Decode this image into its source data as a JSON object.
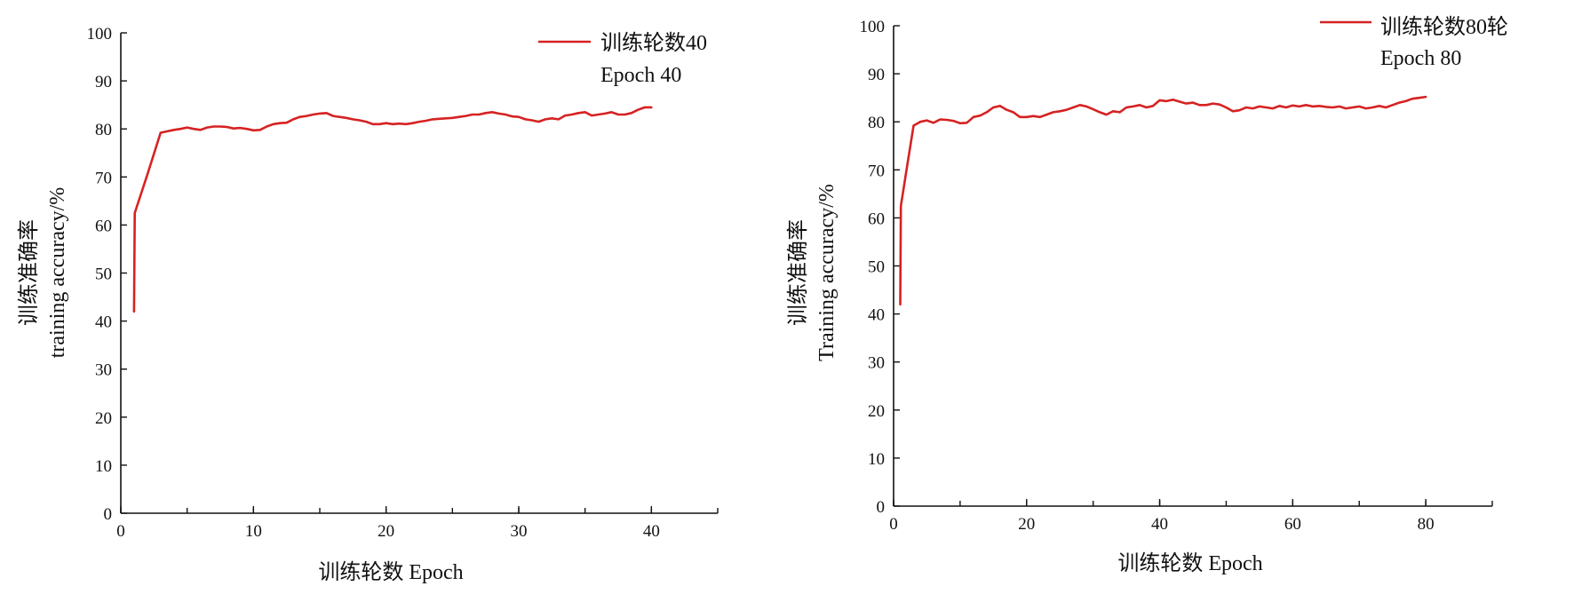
{
  "colors": {
    "series": "#d62222",
    "axis": "#111111"
  },
  "chart_data": [
    {
      "type": "line",
      "xlabel": "训练轮数  Epoch",
      "ylabel_cn": "训练准确率",
      "ylabel_en": "training accuracy/%",
      "xlim": [
        0,
        45
      ],
      "ylim": [
        0,
        100
      ],
      "xticks_major": [
        0,
        10,
        20,
        30,
        40
      ],
      "xticks_minor_step": 5,
      "yticks": [
        0,
        10,
        20,
        30,
        40,
        50,
        60,
        70,
        80,
        90,
        100
      ],
      "grid": false,
      "legend": {
        "position": "top-right",
        "line1": "训练轮数40",
        "line2": "Epoch 40"
      },
      "series": [
        {
          "name": "训练轮数40",
          "x": [
            1,
            1.05,
            2,
            3,
            3.5,
            4,
            4.5,
            5,
            5.5,
            6,
            6.5,
            7,
            7.5,
            8,
            8.5,
            9,
            9.5,
            10,
            10.5,
            11,
            11.5,
            12,
            12.5,
            13,
            13.5,
            14,
            14.5,
            15,
            15.5,
            16,
            16.5,
            17,
            17.5,
            18,
            18.5,
            19,
            19.5,
            20,
            20.5,
            21,
            21.5,
            22,
            22.5,
            23,
            23.5,
            24,
            24.5,
            25,
            25.5,
            26,
            26.5,
            27,
            27.5,
            28,
            28.5,
            29,
            29.5,
            30,
            30.5,
            31,
            31.5,
            32,
            32.5,
            33,
            33.5,
            34,
            34.5,
            35,
            35.5,
            36,
            36.5,
            37,
            37.5,
            38,
            38.5,
            39,
            39.5,
            40
          ],
          "values": [
            42,
            62.5,
            70.5,
            79.2,
            79.5,
            79.8,
            80.0,
            80.3,
            80.0,
            79.8,
            80.3,
            80.5,
            80.5,
            80.4,
            80.1,
            80.2,
            80.0,
            79.7,
            79.8,
            80.5,
            81.0,
            81.2,
            81.3,
            82.0,
            82.5,
            82.7,
            83.0,
            83.2,
            83.3,
            82.7,
            82.5,
            82.3,
            82.0,
            81.8,
            81.5,
            81.0,
            81.0,
            81.2,
            81.0,
            81.1,
            81.0,
            81.2,
            81.5,
            81.7,
            82.0,
            82.1,
            82.2,
            82.3,
            82.5,
            82.7,
            83.0,
            83.0,
            83.3,
            83.5,
            83.2,
            83.0,
            82.6,
            82.5,
            82.0,
            81.8,
            81.5,
            82.0,
            82.2,
            82.0,
            82.8,
            83.0,
            83.3,
            83.5,
            82.8,
            83.0,
            83.2,
            83.5,
            83.0,
            83.0,
            83.3,
            84.0,
            84.5,
            84.5
          ]
        }
      ]
    },
    {
      "type": "line",
      "xlabel": "训练轮数 Epoch",
      "ylabel_cn": "训练准确率",
      "ylabel_en": "Training accuracy/%",
      "xlim": [
        0,
        90
      ],
      "ylim": [
        0,
        100
      ],
      "xticks_major": [
        0,
        20,
        40,
        60,
        80
      ],
      "xticks_minor_step": 10,
      "yticks": [
        0,
        10,
        20,
        30,
        40,
        50,
        60,
        70,
        80,
        90,
        100
      ],
      "grid": false,
      "legend": {
        "position": "top-right",
        "line1": "训练轮数80轮",
        "line2": "Epoch 80"
      },
      "series": [
        {
          "name": "训练轮数80轮",
          "x": [
            1,
            1.1,
            2,
            3,
            4,
            5,
            6,
            7,
            8,
            9,
            10,
            11,
            12,
            13,
            14,
            15,
            16,
            17,
            18,
            19,
            20,
            21,
            22,
            23,
            24,
            25,
            26,
            27,
            28,
            29,
            30,
            31,
            32,
            33,
            34,
            35,
            36,
            37,
            38,
            39,
            40,
            41,
            42,
            43,
            44,
            45,
            46,
            47,
            48,
            49,
            50,
            51,
            52,
            53,
            54,
            55,
            56,
            57,
            58,
            59,
            60,
            61,
            62,
            63,
            64,
            65,
            66,
            67,
            68,
            69,
            70,
            71,
            72,
            73,
            74,
            75,
            76,
            77,
            78,
            79,
            80
          ],
          "values": [
            42,
            62.5,
            70.5,
            79.2,
            80.0,
            80.3,
            79.8,
            80.5,
            80.4,
            80.2,
            79.7,
            79.8,
            81.0,
            81.3,
            82.0,
            83.0,
            83.3,
            82.5,
            82.0,
            81.0,
            81.0,
            81.2,
            81.0,
            81.5,
            82.0,
            82.2,
            82.5,
            83.0,
            83.5,
            83.2,
            82.6,
            82.0,
            81.5,
            82.2,
            82.0,
            83.0,
            83.2,
            83.5,
            83.0,
            83.3,
            84.5,
            84.3,
            84.6,
            84.2,
            83.8,
            84.0,
            83.5,
            83.5,
            83.8,
            83.6,
            83.0,
            82.2,
            82.4,
            83.0,
            82.8,
            83.2,
            83.0,
            82.8,
            83.3,
            83.0,
            83.4,
            83.2,
            83.5,
            83.2,
            83.3,
            83.1,
            83.0,
            83.2,
            82.8,
            83.0,
            83.2,
            82.8,
            83.0,
            83.3,
            83.0,
            83.5,
            84.0,
            84.3,
            84.8,
            85.0,
            85.2
          ]
        }
      ]
    }
  ]
}
